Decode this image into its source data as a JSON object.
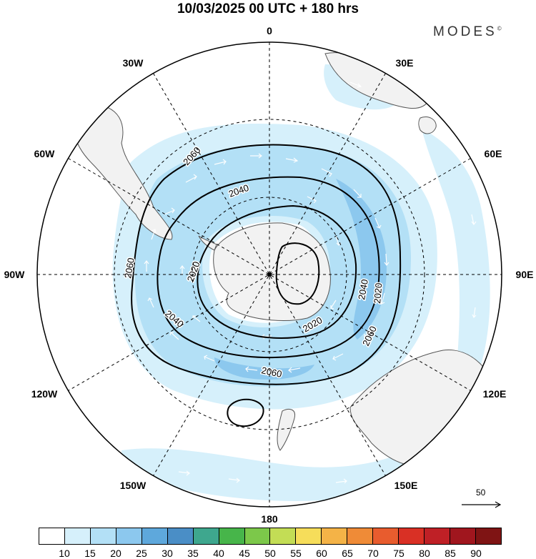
{
  "header": {
    "title": "10/03/2025  00 UTC  + 180 hrs"
  },
  "brand": {
    "name": "MODES",
    "mark": "©"
  },
  "map": {
    "projection": "south-polar-stereographic",
    "longitude_labels": [
      "0",
      "30E",
      "60E",
      "90E",
      "120E",
      "150E",
      "180",
      "150W",
      "120W",
      "90W",
      "60W",
      "30W"
    ],
    "contour_labels": [
      "2060",
      "2040",
      "2020",
      "2020",
      "2040",
      "2060",
      "2040",
      "2020",
      "2060",
      "2060"
    ],
    "colors": {
      "land": "#f2f2f2",
      "coast": "#555555",
      "contour": "#000000",
      "grid": "#000000",
      "wind_arrow": "#ffffff"
    },
    "shaded_field_colors": [
      "#d6f0fb",
      "#b3e0f6",
      "#8cc8ee"
    ]
  },
  "reference_vector": {
    "label": "50"
  },
  "colorbar": {
    "labels": [
      "10",
      "15",
      "20",
      "25",
      "30",
      "35",
      "40",
      "45",
      "50",
      "55",
      "60",
      "65",
      "70",
      "75",
      "80",
      "85",
      "90"
    ],
    "colors": [
      "#ffffff",
      "#d6f0fb",
      "#b3e0f6",
      "#8cc8ee",
      "#5ea8dc",
      "#4a8ec6",
      "#3ea78e",
      "#47b54a",
      "#7cc84a",
      "#c3dd55",
      "#f6dd5a",
      "#f4b347",
      "#ef8b37",
      "#e85c2e",
      "#d93025",
      "#bf2026",
      "#a0161e",
      "#7f1414"
    ]
  }
}
